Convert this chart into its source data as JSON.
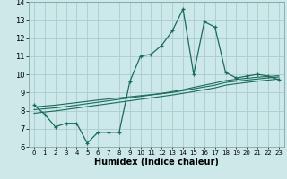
{
  "xlabel": "Humidex (Indice chaleur)",
  "background_color": "#cce8e8",
  "grid_color": "#aacccc",
  "line_color": "#1a6b5a",
  "xlim": [
    -0.5,
    23.5
  ],
  "ylim": [
    6,
    14
  ],
  "yticks": [
    6,
    7,
    8,
    9,
    10,
    11,
    12,
    13,
    14
  ],
  "xticks": [
    0,
    1,
    2,
    3,
    4,
    5,
    6,
    7,
    8,
    9,
    10,
    11,
    12,
    13,
    14,
    15,
    16,
    17,
    18,
    19,
    20,
    21,
    22,
    23
  ],
  "main_line": [
    8.3,
    7.8,
    7.1,
    7.3,
    7.3,
    6.2,
    6.8,
    6.8,
    6.8,
    9.6,
    11.0,
    11.1,
    11.6,
    12.4,
    13.6,
    10.0,
    12.9,
    12.6,
    10.1,
    9.8,
    9.9,
    10.0,
    9.9,
    9.7
  ],
  "trend_line1": [
    8.05,
    8.1,
    8.15,
    8.22,
    8.3,
    8.38,
    8.46,
    8.54,
    8.62,
    8.7,
    8.78,
    8.86,
    8.93,
    9.0,
    9.1,
    9.2,
    9.3,
    9.4,
    9.55,
    9.62,
    9.68,
    9.74,
    9.8,
    9.85
  ],
  "trend_line2": [
    8.2,
    8.25,
    8.3,
    8.37,
    8.44,
    8.51,
    8.58,
    8.64,
    8.7,
    8.76,
    8.82,
    8.88,
    8.95,
    9.05,
    9.15,
    9.28,
    9.4,
    9.52,
    9.65,
    9.72,
    9.78,
    9.84,
    9.88,
    9.92
  ],
  "trend_line3": [
    7.85,
    7.92,
    7.98,
    8.06,
    8.14,
    8.22,
    8.3,
    8.38,
    8.46,
    8.54,
    8.62,
    8.7,
    8.78,
    8.86,
    8.95,
    9.05,
    9.15,
    9.25,
    9.4,
    9.48,
    9.55,
    9.62,
    9.68,
    9.74
  ]
}
